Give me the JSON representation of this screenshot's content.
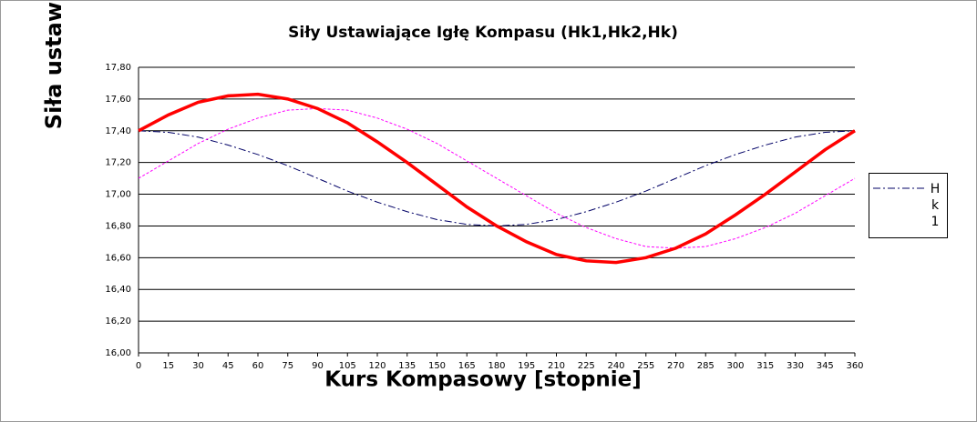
{
  "chart_data": {
    "type": "line",
    "title": "Siły Ustawiające Igłę Kompasu (Hk1,Hk2,Hk)",
    "x_label": "Kurs Kompasowy  [stopnie]",
    "y_label": "Siła ustaw",
    "x": [
      0,
      15,
      30,
      45,
      60,
      75,
      90,
      105,
      120,
      135,
      150,
      165,
      180,
      195,
      210,
      225,
      240,
      255,
      270,
      285,
      300,
      315,
      330,
      345,
      360
    ],
    "series": [
      {
        "name": "Hk1",
        "color": "#000066",
        "dash": "8,3,2,3",
        "width": 1,
        "values": [
          17.4,
          17.39,
          17.36,
          17.31,
          17.25,
          17.18,
          17.1,
          17.02,
          16.95,
          16.89,
          16.84,
          16.81,
          16.8,
          16.81,
          16.84,
          16.89,
          16.95,
          17.02,
          17.1,
          17.18,
          17.25,
          17.31,
          17.36,
          17.39,
          17.4
        ]
      },
      {
        "color": "#ff00ff",
        "dash": "3,2",
        "width": 1,
        "values": [
          17.1,
          17.21,
          17.32,
          17.41,
          17.48,
          17.53,
          17.54,
          17.53,
          17.48,
          17.41,
          17.32,
          17.21,
          17.1,
          16.99,
          16.88,
          16.79,
          16.72,
          16.67,
          16.66,
          16.67,
          16.72,
          16.79,
          16.88,
          16.99,
          17.1
        ]
      },
      {
        "color": "#ff0000",
        "dash": "none",
        "width": 3.5,
        "values": [
          17.4,
          17.5,
          17.58,
          17.62,
          17.63,
          17.6,
          17.54,
          17.45,
          17.33,
          17.2,
          17.06,
          16.92,
          16.8,
          16.7,
          16.62,
          16.58,
          16.57,
          16.6,
          16.66,
          16.75,
          16.87,
          17.0,
          17.14,
          17.28,
          17.4
        ]
      }
    ],
    "xlim": [
      0,
      360
    ],
    "xticks": [
      0,
      15,
      30,
      45,
      60,
      75,
      90,
      105,
      120,
      135,
      150,
      165,
      180,
      195,
      210,
      225,
      240,
      255,
      270,
      285,
      300,
      315,
      330,
      345,
      360
    ],
    "ylim": [
      16.0,
      17.8
    ],
    "yticks": [
      {
        "value": 16.0,
        "label": "16,00"
      },
      {
        "value": 16.2,
        "label": "16,20"
      },
      {
        "value": 16.4,
        "label": "16,40"
      },
      {
        "value": 16.6,
        "label": "16,60"
      },
      {
        "value": 16.8,
        "label": "16,80"
      },
      {
        "value": 17.0,
        "label": "17,00"
      },
      {
        "value": 17.2,
        "label": "17,20"
      },
      {
        "value": 17.4,
        "label": "17,40"
      },
      {
        "value": 17.6,
        "label": "17,60"
      },
      {
        "value": 17.8,
        "label": "17,80"
      }
    ],
    "grid": true
  }
}
